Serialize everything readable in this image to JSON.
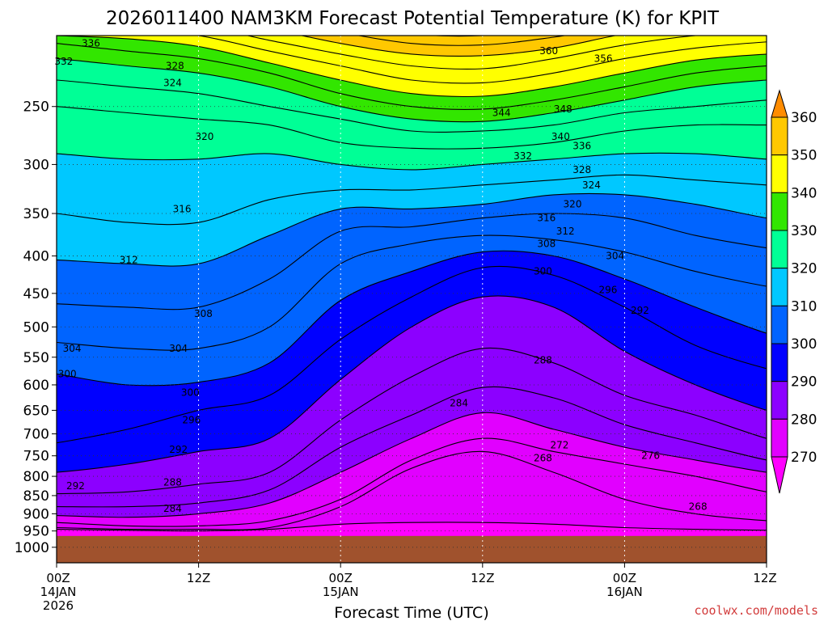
{
  "chart_data": {
    "type": "area",
    "title": "2026011400 NAM3KM Forecast Potential Temperature (K) for KPIT",
    "xlabel": "Forecast Time (UTC)",
    "ylabel": "",
    "credit": "coolwx.com/models",
    "y_axis": {
      "scale": "log-pressure",
      "reversed": true,
      "ylim": [
        200,
        1050
      ],
      "ticks": [
        250,
        300,
        350,
        400,
        450,
        500,
        550,
        600,
        650,
        700,
        750,
        800,
        850,
        900,
        950,
        1000
      ],
      "tick_labels": [
        "250",
        "300",
        "350",
        "400",
        "450",
        "500",
        "550",
        "600",
        "650",
        "700",
        "750",
        "800",
        "850",
        "900",
        "950",
        "1000"
      ]
    },
    "x_axis": {
      "xlim": [
        0,
        60
      ],
      "ticks": [
        0,
        12,
        24,
        36,
        48,
        60
      ],
      "tick_labels": [
        {
          "hour": "00Z",
          "date": "14JAN",
          "year": "2026"
        },
        {
          "hour": "12Z",
          "date": "",
          "year": ""
        },
        {
          "hour": "00Z",
          "date": "15JAN",
          "year": ""
        },
        {
          "hour": "12Z",
          "date": "",
          "year": ""
        },
        {
          "hour": "00Z",
          "date": "16JAN",
          "year": ""
        },
        {
          "hour": "12Z",
          "date": "",
          "year": ""
        }
      ]
    },
    "grid": true,
    "ground": {
      "color": "#a0522d",
      "pressure_top": 965
    },
    "colorbar": {
      "position": "right",
      "ticks": [
        360,
        350,
        340,
        330,
        320,
        310,
        300,
        290,
        280,
        270
      ],
      "levels": [
        {
          "min": 265,
          "max": 270,
          "color": "#ff00ff"
        },
        {
          "min": 270,
          "max": 280,
          "color": "#e100ff"
        },
        {
          "min": 280,
          "max": 290,
          "color": "#8c00ff"
        },
        {
          "min": 290,
          "max": 300,
          "color": "#0000ff"
        },
        {
          "min": 300,
          "max": 310,
          "color": "#0064ff"
        },
        {
          "min": 310,
          "max": 320,
          "color": "#00c8ff"
        },
        {
          "min": 320,
          "max": 330,
          "color": "#00ff96"
        },
        {
          "min": 330,
          "max": 340,
          "color": "#32e600"
        },
        {
          "min": 340,
          "max": 350,
          "color": "#ffff00"
        },
        {
          "min": 350,
          "max": 360,
          "color": "#ffc800"
        },
        {
          "min": 360,
          "max": 370,
          "color": "#ff8c00"
        }
      ]
    },
    "isentropes": [
      {
        "theta": 270,
        "pressure": [
          945,
          948,
          950,
          945,
          930,
          925,
          925,
          930,
          940,
          945,
          948
        ]
      },
      {
        "theta": 272,
        "pressure": [
          940,
          945,
          945,
          940,
          880,
          780,
          740,
          790,
          860,
          900,
          920
        ]
      },
      {
        "theta": 276,
        "pressure": [
          925,
          935,
          935,
          920,
          860,
          760,
          710,
          740,
          770,
          800,
          840
        ]
      },
      {
        "theta": 280,
        "pressure": [
          905,
          910,
          900,
          870,
          790,
          710,
          655,
          690,
          730,
          760,
          790
        ]
      },
      {
        "theta": 284,
        "pressure": [
          880,
          880,
          870,
          835,
          730,
          660,
          605,
          625,
          680,
          720,
          760
        ]
      },
      {
        "theta": 288,
        "pressure": [
          845,
          840,
          820,
          790,
          670,
          585,
          535,
          560,
          620,
          660,
          710
        ]
      },
      {
        "theta": 292,
        "pressure": [
          790,
          770,
          740,
          710,
          590,
          500,
          455,
          470,
          540,
          600,
          650
        ]
      },
      {
        "theta": 296,
        "pressure": [
          720,
          690,
          650,
          620,
          520,
          455,
          415,
          425,
          470,
          530,
          570
        ]
      },
      {
        "theta": 300,
        "pressure": [
          580,
          600,
          595,
          560,
          460,
          420,
          395,
          400,
          430,
          470,
          510
        ]
      },
      {
        "theta": 304,
        "pressure": [
          525,
          535,
          535,
          500,
          410,
          385,
          375,
          380,
          395,
          420,
          440
        ]
      },
      {
        "theta": 308,
        "pressure": [
          465,
          470,
          470,
          430,
          370,
          365,
          355,
          350,
          355,
          375,
          390
        ]
      },
      {
        "theta": 312,
        "pressure": [
          405,
          410,
          410,
          375,
          345,
          345,
          340,
          330,
          330,
          340,
          355
        ]
      },
      {
        "theta": 316,
        "pressure": [
          350,
          360,
          360,
          335,
          325,
          325,
          320,
          315,
          310,
          315,
          320
        ]
      },
      {
        "theta": 320,
        "pressure": [
          290,
          295,
          295,
          290,
          300,
          305,
          300,
          295,
          290,
          290,
          295
        ]
      },
      {
        "theta": 324,
        "pressure": [
          250,
          255,
          260,
          265,
          280,
          285,
          285,
          280,
          270,
          265,
          265
        ]
      },
      {
        "theta": 328,
        "pressure": [
          230,
          235,
          240,
          250,
          260,
          270,
          270,
          265,
          255,
          250,
          245
        ]
      },
      {
        "theta": 332,
        "pressure": [
          215,
          220,
          225,
          235,
          250,
          260,
          262,
          255,
          245,
          235,
          230
        ]
      },
      {
        "theta": 336,
        "pressure": [
          205,
          210,
          215,
          225,
          240,
          250,
          252,
          245,
          235,
          225,
          220
        ]
      },
      {
        "theta": 340,
        "pressure": [
          200,
          202,
          207,
          218,
          230,
          240,
          242,
          235,
          225,
          216,
          212
        ]
      },
      {
        "theta": 344,
        "pressure": [
          196,
          196,
          200,
          210,
          220,
          230,
          232,
          225,
          215,
          208,
          204
        ]
      },
      {
        "theta": 348,
        "pressure": [
          192,
          192,
          194,
          203,
          212,
          220,
          222,
          215,
          206,
          200,
          198
        ]
      },
      {
        "theta": 352,
        "pressure": [
          188,
          188,
          190,
          196,
          205,
          212,
          213,
          208,
          199,
          194,
          193
        ]
      },
      {
        "theta": 356,
        "pressure": [
          185,
          185,
          186,
          190,
          198,
          205,
          206,
          201,
          194,
          190,
          188
        ]
      },
      {
        "theta": 360,
        "pressure": [
          182,
          182,
          183,
          186,
          192,
          199,
          200,
          195,
          189,
          186,
          184
        ]
      }
    ],
    "isentrope_x": [
      0,
      6,
      12,
      18,
      24,
      30,
      36,
      42,
      48,
      54,
      60
    ],
    "contour_labels": [
      {
        "text": "336",
        "x": 2.9,
        "p": 205
      },
      {
        "text": "332",
        "x": 0.6,
        "p": 217
      },
      {
        "text": "328",
        "x": 10,
        "p": 220
      },
      {
        "text": "324",
        "x": 9.8,
        "p": 232
      },
      {
        "text": "320",
        "x": 12.5,
        "p": 275
      },
      {
        "text": "316",
        "x": 10.6,
        "p": 345
      },
      {
        "text": "312",
        "x": 6.1,
        "p": 405
      },
      {
        "text": "308",
        "x": 12.4,
        "p": 480
      },
      {
        "text": "304",
        "x": 1.3,
        "p": 535
      },
      {
        "text": "304",
        "x": 10.3,
        "p": 535
      },
      {
        "text": "300",
        "x": 0.9,
        "p": 580
      },
      {
        "text": "300",
        "x": 11.3,
        "p": 615
      },
      {
        "text": "296",
        "x": 11.4,
        "p": 670
      },
      {
        "text": "292",
        "x": 10.3,
        "p": 735
      },
      {
        "text": "292",
        "x": 1.6,
        "p": 825
      },
      {
        "text": "288",
        "x": 9.8,
        "p": 815
      },
      {
        "text": "284",
        "x": 9.8,
        "p": 885
      },
      {
        "text": "360",
        "x": 41.6,
        "p": 210
      },
      {
        "text": "356",
        "x": 46.2,
        "p": 215
      },
      {
        "text": "344",
        "x": 37.6,
        "p": 255
      },
      {
        "text": "348",
        "x": 42.8,
        "p": 252
      },
      {
        "text": "340",
        "x": 42.6,
        "p": 275
      },
      {
        "text": "336",
        "x": 44.4,
        "p": 283
      },
      {
        "text": "332",
        "x": 39.4,
        "p": 292
      },
      {
        "text": "328",
        "x": 44.4,
        "p": 305
      },
      {
        "text": "324",
        "x": 45.2,
        "p": 320
      },
      {
        "text": "320",
        "x": 43.6,
        "p": 340
      },
      {
        "text": "316",
        "x": 41.4,
        "p": 355
      },
      {
        "text": "312",
        "x": 43,
        "p": 370
      },
      {
        "text": "308",
        "x": 41.4,
        "p": 385
      },
      {
        "text": "304",
        "x": 47.2,
        "p": 400
      },
      {
        "text": "300",
        "x": 41.1,
        "p": 420
      },
      {
        "text": "296",
        "x": 46.6,
        "p": 445
      },
      {
        "text": "292",
        "x": 49.3,
        "p": 475
      },
      {
        "text": "288",
        "x": 41.1,
        "p": 555
      },
      {
        "text": "284",
        "x": 34,
        "p": 635
      },
      {
        "text": "272",
        "x": 42.5,
        "p": 725
      },
      {
        "text": "268",
        "x": 41.1,
        "p": 755
      },
      {
        "text": "276",
        "x": 50.2,
        "p": 750
      },
      {
        "text": "268",
        "x": 54.2,
        "p": 880
      }
    ]
  }
}
